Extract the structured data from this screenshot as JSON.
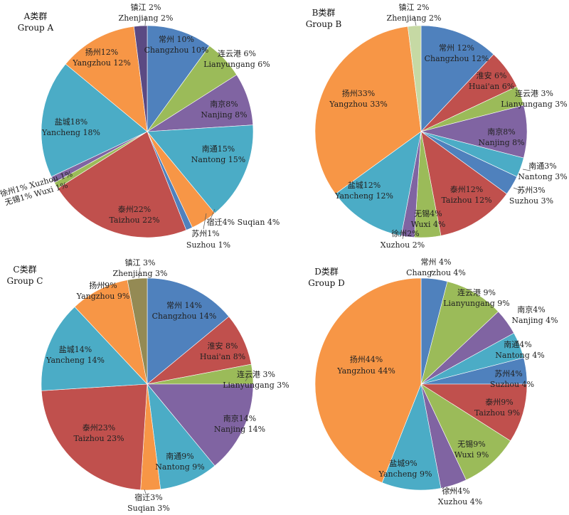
{
  "colors": {
    "blue": "#4f81bd",
    "red": "#c0504d",
    "green": "#9bbb59",
    "purple": "#8064a2",
    "aqua": "#4bacc6",
    "orange": "#f79646",
    "darkpurple": "#5b4a83",
    "pale": "#c6d9a4",
    "olive": "#948a54"
  },
  "chart_data": [
    {
      "type": "pie",
      "title_cn": "A类群",
      "title_en": "Group A",
      "slices": [
        {
          "label_cn": "常州 10%",
          "label_en": "Changzhou 10%",
          "value": 10,
          "color": "blue"
        },
        {
          "label_cn": "连云港 6%",
          "label_en": "Lianyungang 6%",
          "value": 6,
          "color": "green"
        },
        {
          "label_cn": "南京8%",
          "label_en": "Nanjing 8%",
          "value": 8,
          "color": "purple"
        },
        {
          "label_cn": "南通15%",
          "label_en": "Nantong 15%",
          "value": 15,
          "color": "aqua"
        },
        {
          "label_cn": "宿迁4% Suqian 4%",
          "label_en": "",
          "value": 4,
          "color": "orange"
        },
        {
          "label_cn": "苏州1%",
          "label_en": "Suzhou 1%",
          "value": 1,
          "color": "blue"
        },
        {
          "label_cn": "泰州22%",
          "label_en": "Taizhou 22%",
          "value": 22,
          "color": "red"
        },
        {
          "label_cn": "无锡1% Wuxi 1%",
          "label_en": "",
          "value": 1,
          "color": "green"
        },
        {
          "label_cn": "徐州1% Xuzhou 1%",
          "label_en": "",
          "value": 1,
          "color": "purple"
        },
        {
          "label_cn": "盐城18%",
          "label_en": "Yancheng 18%",
          "value": 18,
          "color": "aqua"
        },
        {
          "label_cn": "扬州12%",
          "label_en": "Yangzhou 12%",
          "value": 12,
          "color": "orange"
        },
        {
          "label_cn": "镇江 2%",
          "label_en": "Zhenjiang 2%",
          "value": 2,
          "color": "darkpurple"
        }
      ]
    },
    {
      "type": "pie",
      "title_cn": "B类群",
      "title_en": "Group B",
      "slices": [
        {
          "label_cn": "常州 12%",
          "label_en": "Changzhou 12%",
          "value": 12,
          "color": "blue"
        },
        {
          "label_cn": "淮安 6%",
          "label_en": "Huai'an 6%",
          "value": 6,
          "color": "red"
        },
        {
          "label_cn": "连云港 3%",
          "label_en": "Lianyungang 3%",
          "value": 3,
          "color": "green"
        },
        {
          "label_cn": "南京8%",
          "label_en": "Nanjing 8%",
          "value": 8,
          "color": "purple"
        },
        {
          "label_cn": "南通3%",
          "label_en": "Nantong 3%",
          "value": 3,
          "color": "aqua"
        },
        {
          "label_cn": "苏州3%",
          "label_en": "Suzhou 3%",
          "value": 3,
          "color": "blue"
        },
        {
          "label_cn": "泰州12%",
          "label_en": "Taizhou 12%",
          "value": 12,
          "color": "red"
        },
        {
          "label_cn": "无锡4%",
          "label_en": "Wuxi 4%",
          "value": 4,
          "color": "green"
        },
        {
          "label_cn": "徐州2%",
          "label_en": "Xuzhou 2%",
          "value": 2,
          "color": "purple"
        },
        {
          "label_cn": "盐城12%",
          "label_en": "Yancheng 12%",
          "value": 12,
          "color": "aqua"
        },
        {
          "label_cn": "扬州33%",
          "label_en": "Yangzhou 33%",
          "value": 33,
          "color": "orange"
        },
        {
          "label_cn": "镇江 2%",
          "label_en": "Zhenjiang 2%",
          "value": 2,
          "color": "pale"
        }
      ]
    },
    {
      "type": "pie",
      "title_cn": "C类群",
      "title_en": "Group C",
      "slices": [
        {
          "label_cn": "常州 14%",
          "label_en": "Changzhou 14%",
          "value": 14,
          "color": "blue"
        },
        {
          "label_cn": "淮安 8%",
          "label_en": "Huai'an 8%",
          "value": 8,
          "color": "red"
        },
        {
          "label_cn": "连云港 3%",
          "label_en": "Lianyungang 3%",
          "value": 3,
          "color": "green"
        },
        {
          "label_cn": "南京14%",
          "label_en": "Nanjing 14%",
          "value": 14,
          "color": "purple"
        },
        {
          "label_cn": "南通9%",
          "label_en": "Nantong 9%",
          "value": 9,
          "color": "aqua"
        },
        {
          "label_cn": "宿迁3%",
          "label_en": "Suqian 3%",
          "value": 3,
          "color": "orange"
        },
        {
          "label_cn": "泰州23%",
          "label_en": "Taizhou 23%",
          "value": 23,
          "color": "red"
        },
        {
          "label_cn": "盐城14%",
          "label_en": "Yancheng 14%",
          "value": 14,
          "color": "aqua"
        },
        {
          "label_cn": "扬州9%",
          "label_en": "Yangzhou 9%",
          "value": 9,
          "color": "orange"
        },
        {
          "label_cn": "镇江 3%",
          "label_en": "Zhenjiang 3%",
          "value": 3,
          "color": "olive"
        }
      ]
    },
    {
      "type": "pie",
      "title_cn": "D类群",
      "title_en": "Group D",
      "slices": [
        {
          "label_cn": "常州 4%",
          "label_en": "Changzhou 4%",
          "value": 4,
          "color": "blue"
        },
        {
          "label_cn": "连云港 9%",
          "label_en": "Lianyungang 9%",
          "value": 9,
          "color": "green"
        },
        {
          "label_cn": "南京4%",
          "label_en": "Nanjing 4%",
          "value": 4,
          "color": "purple"
        },
        {
          "label_cn": "南通4%",
          "label_en": "Nantong 4%",
          "value": 4,
          "color": "aqua"
        },
        {
          "label_cn": "苏州4%",
          "label_en": "Suzhou 4%",
          "value": 4,
          "color": "blue"
        },
        {
          "label_cn": "泰州9%",
          "label_en": "Taizhou 9%",
          "value": 9,
          "color": "red"
        },
        {
          "label_cn": "无锡9%",
          "label_en": "Wuxi 9%",
          "value": 9,
          "color": "green"
        },
        {
          "label_cn": "徐州4%",
          "label_en": "Xuzhou 4%",
          "value": 4,
          "color": "purple"
        },
        {
          "label_cn": "盐城9%",
          "label_en": "Yancheng 9%",
          "value": 9,
          "color": "aqua"
        },
        {
          "label_cn": "扬州44%",
          "label_en": "Yangzhou 44%",
          "value": 44,
          "color": "orange"
        }
      ]
    }
  ]
}
